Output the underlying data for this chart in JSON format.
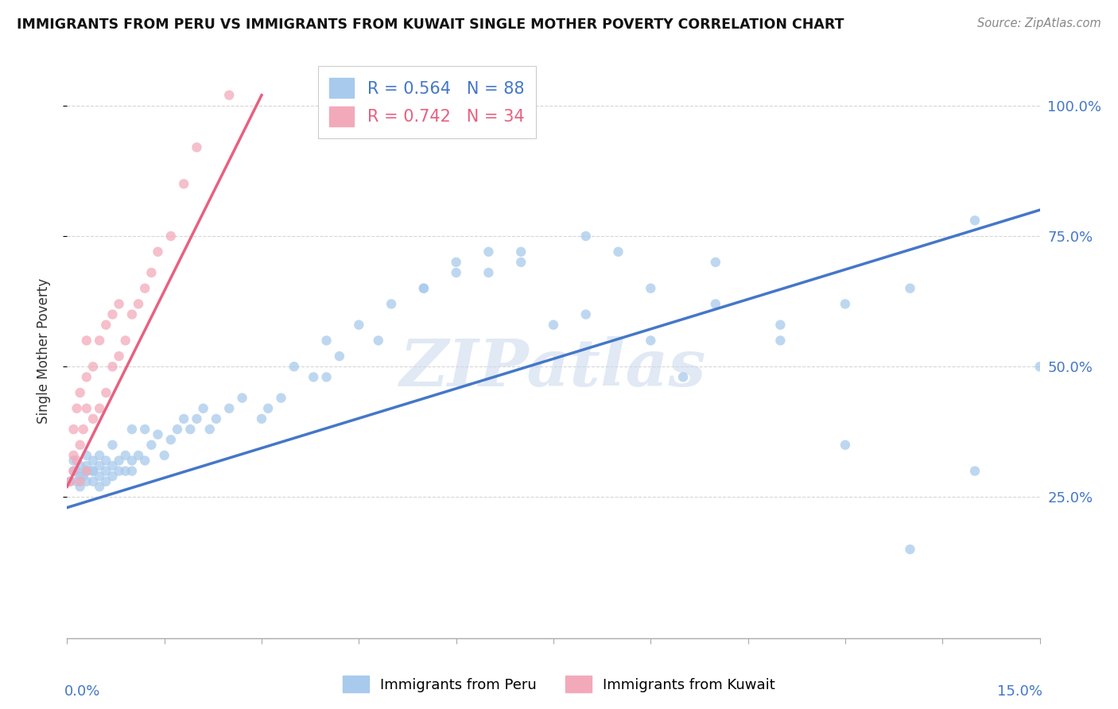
{
  "title": "IMMIGRANTS FROM PERU VS IMMIGRANTS FROM KUWAIT SINGLE MOTHER POVERTY CORRELATION CHART",
  "source": "Source: ZipAtlas.com",
  "ylabel": "Single Mother Poverty",
  "legend_peru_text": "R = 0.564   N = 88",
  "legend_kuwait_text": "R = 0.742   N = 34",
  "legend_label_peru": "Immigrants from Peru",
  "legend_label_kuwait": "Immigrants from Kuwait",
  "color_peru": "#A8CAEC",
  "color_kuwait": "#F2AABA",
  "line_color_peru": "#4477C8",
  "line_color_kuwait": "#E86080",
  "watermark": "ZIPatlas",
  "xlim": [
    0.0,
    0.15
  ],
  "ylim": [
    -0.02,
    1.08
  ],
  "yticks": [
    0.25,
    0.5,
    0.75,
    1.0
  ],
  "ytick_labels": [
    "25.0%",
    "50.0%",
    "75.0%",
    "100.0%"
  ],
  "background_color": "#FFFFFF",
  "grid_color": "#CCCCCC",
  "peru_line_x": [
    0.0,
    0.15
  ],
  "peru_line_y": [
    0.23,
    0.8
  ],
  "kuwait_line_x": [
    0.0,
    0.03
  ],
  "kuwait_line_y": [
    0.27,
    1.02
  ],
  "peru_x": [
    0.0005,
    0.001,
    0.001,
    0.0015,
    0.0015,
    0.002,
    0.002,
    0.002,
    0.0025,
    0.003,
    0.003,
    0.003,
    0.003,
    0.003,
    0.004,
    0.004,
    0.004,
    0.004,
    0.005,
    0.005,
    0.005,
    0.005,
    0.006,
    0.006,
    0.006,
    0.007,
    0.007,
    0.007,
    0.008,
    0.008,
    0.009,
    0.009,
    0.01,
    0.01,
    0.01,
    0.011,
    0.012,
    0.012,
    0.013,
    0.014,
    0.015,
    0.016,
    0.017,
    0.018,
    0.019,
    0.02,
    0.021,
    0.022,
    0.023,
    0.025,
    0.027,
    0.03,
    0.031,
    0.033,
    0.035,
    0.038,
    0.04,
    0.042,
    0.045,
    0.048,
    0.05,
    0.055,
    0.06,
    0.065,
    0.07,
    0.08,
    0.09,
    0.1,
    0.11,
    0.12,
    0.13,
    0.14,
    0.04,
    0.055,
    0.06,
    0.065,
    0.07,
    0.075,
    0.08,
    0.085,
    0.09,
    0.095,
    0.1,
    0.11,
    0.12,
    0.13,
    0.14,
    0.15
  ],
  "peru_y": [
    0.28,
    0.3,
    0.32,
    0.28,
    0.3,
    0.27,
    0.29,
    0.31,
    0.29,
    0.28,
    0.3,
    0.31,
    0.33,
    0.3,
    0.28,
    0.3,
    0.32,
    0.3,
    0.27,
    0.29,
    0.31,
    0.33,
    0.28,
    0.3,
    0.32,
    0.29,
    0.31,
    0.35,
    0.3,
    0.32,
    0.3,
    0.33,
    0.3,
    0.32,
    0.38,
    0.33,
    0.32,
    0.38,
    0.35,
    0.37,
    0.33,
    0.36,
    0.38,
    0.4,
    0.38,
    0.4,
    0.42,
    0.38,
    0.4,
    0.42,
    0.44,
    0.4,
    0.42,
    0.44,
    0.5,
    0.48,
    0.55,
    0.52,
    0.58,
    0.55,
    0.62,
    0.65,
    0.7,
    0.68,
    0.72,
    0.6,
    0.65,
    0.7,
    0.55,
    0.62,
    0.65,
    0.78,
    0.48,
    0.65,
    0.68,
    0.72,
    0.7,
    0.58,
    0.75,
    0.72,
    0.55,
    0.48,
    0.62,
    0.58,
    0.35,
    0.15,
    0.3,
    0.5
  ],
  "kuwait_x": [
    0.0005,
    0.001,
    0.001,
    0.001,
    0.0015,
    0.0015,
    0.002,
    0.002,
    0.002,
    0.0025,
    0.003,
    0.003,
    0.003,
    0.003,
    0.004,
    0.004,
    0.005,
    0.005,
    0.006,
    0.006,
    0.007,
    0.007,
    0.008,
    0.008,
    0.009,
    0.01,
    0.011,
    0.012,
    0.013,
    0.014,
    0.016,
    0.018,
    0.02,
    0.025
  ],
  "kuwait_y": [
    0.28,
    0.3,
    0.33,
    0.38,
    0.32,
    0.42,
    0.28,
    0.35,
    0.45,
    0.38,
    0.3,
    0.42,
    0.48,
    0.55,
    0.4,
    0.5,
    0.42,
    0.55,
    0.45,
    0.58,
    0.5,
    0.6,
    0.52,
    0.62,
    0.55,
    0.6,
    0.62,
    0.65,
    0.68,
    0.72,
    0.75,
    0.85,
    0.92,
    1.02
  ]
}
